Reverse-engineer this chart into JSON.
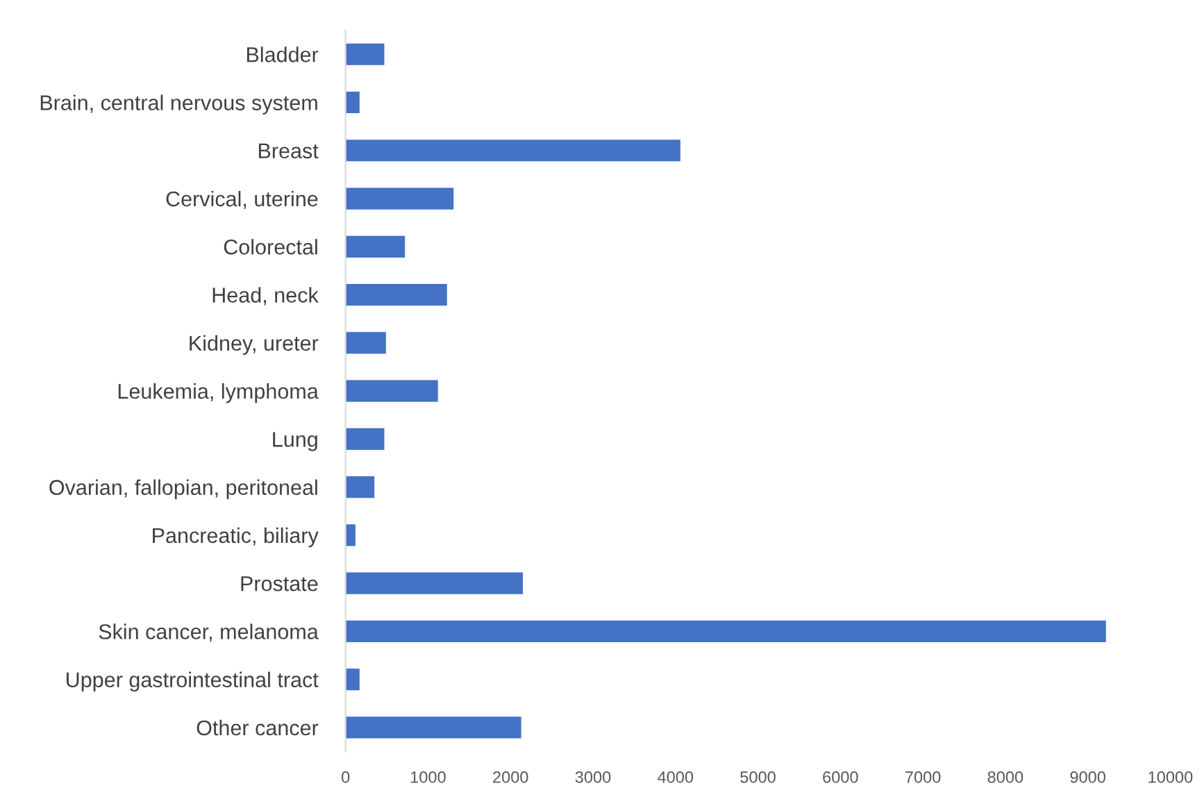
{
  "chart_data": {
    "type": "bar",
    "orientation": "horizontal",
    "categories": [
      "Bladder",
      "Brain, central nervous system",
      "Breast",
      "Cervical, uterine",
      "Colorectal",
      "Head, neck",
      "Kidney, ureter",
      "Leukemia, lymphoma",
      "Lung",
      "Ovarian, fallopian, peritoneal",
      "Pancreatic, biliary",
      "Prostate",
      "Skin cancer, melanoma",
      "Upper gastrointestinal tract",
      "Other cancer"
    ],
    "values": [
      470,
      170,
      4060,
      1310,
      720,
      1230,
      490,
      1120,
      470,
      350,
      120,
      2150,
      9220,
      170,
      2130
    ],
    "color": "#4472c4",
    "xlim": [
      0,
      10000
    ],
    "xticks": [
      0,
      1000,
      2000,
      3000,
      4000,
      5000,
      6000,
      7000,
      8000,
      9000,
      10000
    ],
    "grid": false,
    "legend": false
  }
}
